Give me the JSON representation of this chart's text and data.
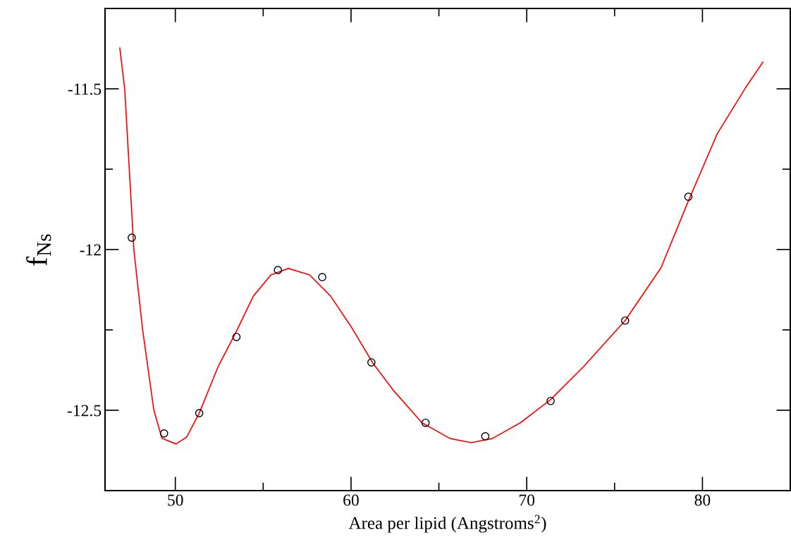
{
  "chart_data": {
    "type": "scatter",
    "xlabel": "Area per lipid (Angstroms$^{2}$)",
    "ylabel": "f$_{Ns}$",
    "xlim": [
      46,
      85
    ],
    "ylim": [
      -12.75,
      -11.25
    ],
    "xticks": [
      50,
      {
        "value": 55,
        "label": null
      },
      60,
      {
        "value": 65,
        "label": null
      },
      70,
      {
        "value": 75,
        "label": null
      },
      80
    ],
    "yticks": [
      -12.5,
      {
        "value": -12.25,
        "label": null
      },
      -12,
      {
        "value": -11.75,
        "label": null
      },
      -11.5
    ],
    "grid": false,
    "legend": false,
    "series": [
      {
        "type": "line",
        "color": "#ff0000",
        "marker": "none",
        "line_style": "solid",
        "x": [
          46.84,
          47.12,
          47.64,
          48.14,
          48.78,
          49.24,
          50.04,
          50.64,
          51.36,
          52.44,
          53.48,
          54.44,
          55.44,
          56.44,
          57.64,
          58.84,
          60.04,
          61.24,
          62.44,
          64.04,
          65.64,
          66.84,
          68.04,
          69.64,
          71.36,
          73.24,
          75.6,
          77.64,
          79.2,
          80.84,
          82.44,
          83.44
        ],
        "values": [
          -11.373,
          -11.5,
          -12.0,
          -12.25,
          -12.5,
          -12.587,
          -12.605,
          -12.584,
          -12.509,
          -12.364,
          -12.254,
          -12.145,
          -12.079,
          -12.059,
          -12.079,
          -12.145,
          -12.243,
          -12.353,
          -12.44,
          -12.539,
          -12.588,
          -12.601,
          -12.588,
          -12.539,
          -12.467,
          -12.364,
          -12.221,
          -12.057,
          -11.849,
          -11.64,
          -11.498,
          -11.417
        ]
      },
      {
        "color": "#000000",
        "marker": "circle",
        "x": [
          47.52,
          49.36,
          51.36,
          53.48,
          55.84,
          58.36,
          61.16,
          64.24,
          67.64,
          71.36,
          75.6,
          79.2
        ],
        "values": [
          -11.963,
          -12.572,
          -12.509,
          -12.272,
          -12.064,
          -12.086,
          -12.351,
          -12.539,
          -12.581,
          -12.471,
          -12.221,
          -11.836
        ]
      }
    ]
  }
}
